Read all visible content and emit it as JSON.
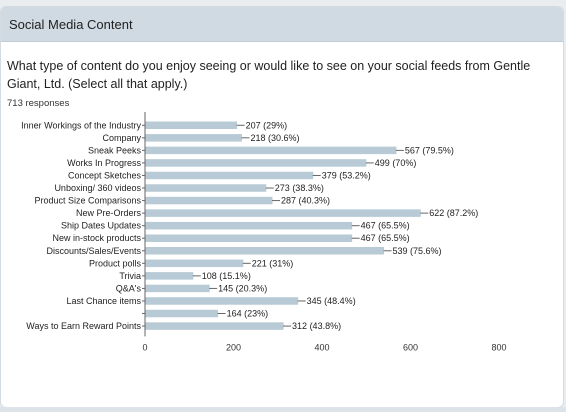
{
  "card": {
    "title": "Social Media Content",
    "question": "What type of content do you enjoy seeing or would like to see on your social feeds from Gentle Giant, Ltd. (Select all that apply.)",
    "responses": "713 responses"
  },
  "colors": {
    "bar": "#b8cad5",
    "header_bg": "#cfdae2"
  },
  "chart_data": {
    "type": "bar",
    "orientation": "horizontal",
    "categories": [
      "Inner Workings of the Industry",
      "Company",
      "Sneak Peeks",
      "Works In Progress",
      "Concept Sketches",
      "Unboxing/ 360 videos",
      "Product Size Comparisons",
      "New Pre-Orders",
      "Ship Dates Updates",
      "New in-stock products",
      "Discounts/Sales/Events",
      "Product polls",
      "Trivia",
      "Q&A's",
      "Last Chance items",
      "",
      "Ways to Earn Reward Points"
    ],
    "values": [
      207,
      218,
      567,
      499,
      379,
      273,
      287,
      622,
      467,
      467,
      539,
      221,
      108,
      145,
      345,
      164,
      312
    ],
    "data_labels": [
      "207 (29%)",
      "218 (30.6%)",
      "567 (79.5%)",
      "499 (70%)",
      "379 (53.2%)",
      "273 (38.3%)",
      "287 (40.3%)",
      "622 (87.2%)",
      "467 (65.5%)",
      "467 (65.5%)",
      "539 (75.6%)",
      "221 (31%)",
      "108 (15.1%)",
      "145 (20.3%)",
      "345 (48.4%)",
      "164 (23%)",
      "312 (43.8%)"
    ],
    "xlim": [
      0,
      800
    ],
    "x_ticks": [
      "0",
      "200",
      "400",
      "600",
      "800"
    ],
    "grid": false
  }
}
